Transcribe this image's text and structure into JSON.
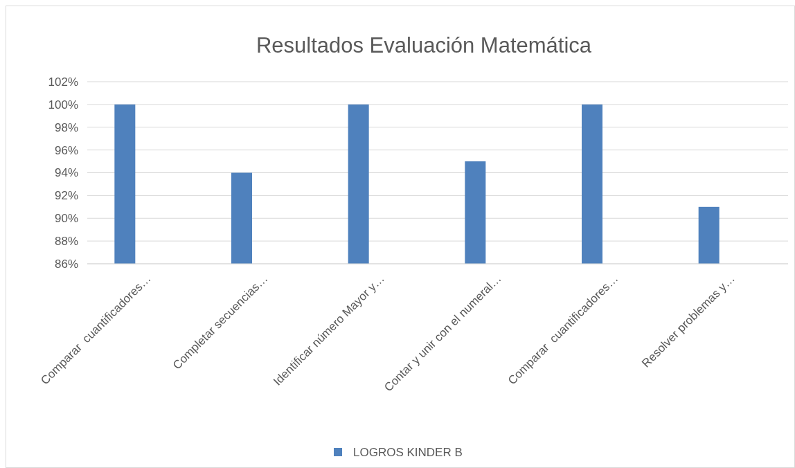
{
  "chart_data": {
    "type": "bar",
    "title": "Resultados Evaluación Matemática",
    "categories": [
      "Comparar  cuantificadores…",
      "Completar secuencias…",
      "Identificar número Mayor y…",
      "Contar y unir con el numeral…",
      "Comparar  cuantificadores…",
      "Resolver problemas y…"
    ],
    "series": [
      {
        "name": "LOGROS KINDER B",
        "color": "#4f81bd",
        "values": [
          100,
          94,
          100,
          95,
          100,
          91
        ]
      }
    ],
    "ylim": [
      86,
      102
    ],
    "yticks": [
      {
        "value": 86,
        "label": "86%"
      },
      {
        "value": 88,
        "label": "88%"
      },
      {
        "value": 90,
        "label": "90%"
      },
      {
        "value": 92,
        "label": "92%"
      },
      {
        "value": 94,
        "label": "94%"
      },
      {
        "value": 96,
        "label": "96%"
      },
      {
        "value": 98,
        "label": "98%"
      },
      {
        "value": 100,
        "label": "100%"
      },
      {
        "value": 102,
        "label": "102%"
      }
    ],
    "grid": true,
    "legend": "bottom"
  }
}
